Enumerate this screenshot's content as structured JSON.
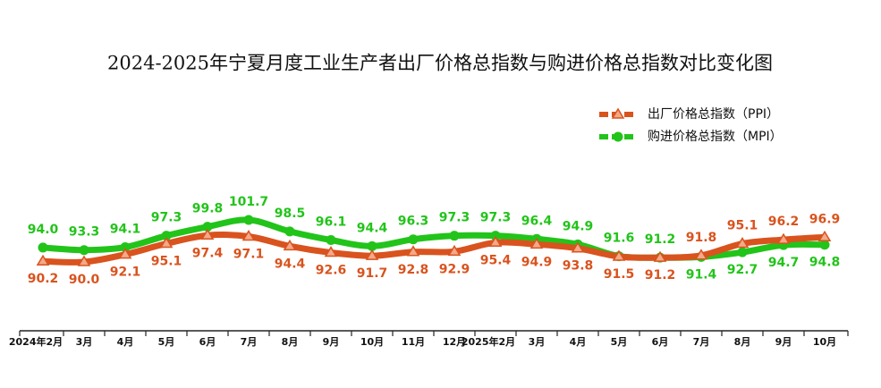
{
  "chart_data": {
    "type": "line",
    "title": "2024-2025年宁夏月度工业生产者出厂价格总指数与购进价格总指数对比变化图",
    "categories": [
      "2024年2月",
      "3月",
      "4月",
      "5月",
      "6月",
      "7月",
      "8月",
      "9月",
      "10月",
      "11月",
      "12月",
      "2025年2月",
      "3月",
      "4月",
      "5月",
      "6月",
      "7月",
      "8月",
      "9月",
      "10月"
    ],
    "series": [
      {
        "name": "出厂价格总指数（PPI）",
        "color": "#d9531e",
        "marker": "triangle",
        "values": [
          90.2,
          90.0,
          92.1,
          95.1,
          97.4,
          97.1,
          94.4,
          92.6,
          91.7,
          92.8,
          92.9,
          95.4,
          94.9,
          93.8,
          91.5,
          91.2,
          91.8,
          95.1,
          96.2,
          96.9
        ],
        "value_labels": [
          "90.2",
          "90.0",
          "92.1",
          "95.1",
          "97.4",
          "97.1",
          "94.4",
          "92.6",
          "91.7",
          "92.8",
          "92.9",
          "95.4",
          "94.9",
          "93.8",
          "91.5",
          "91.2",
          "91.8",
          "95.1",
          "96.2",
          "96.9"
        ]
      },
      {
        "name": "购进价格总指数（MPI）",
        "color": "#22c41a",
        "marker": "circle",
        "values": [
          94.0,
          93.3,
          94.1,
          97.3,
          99.8,
          101.7,
          98.5,
          96.1,
          94.4,
          96.3,
          97.3,
          97.3,
          96.4,
          94.9,
          91.6,
          91.2,
          91.4,
          92.7,
          94.7,
          94.8
        ],
        "value_labels": [
          "94.0",
          "93.3",
          "94.1",
          "97.3",
          "99.8",
          "101.7",
          "98.5",
          "96.1",
          "94.4",
          "96.3",
          "97.3",
          "97.3",
          "96.4",
          "94.9",
          "91.6",
          "91.2",
          "91.4",
          "92.7",
          "94.7",
          "94.8"
        ]
      }
    ],
    "legend": "top-right"
  }
}
